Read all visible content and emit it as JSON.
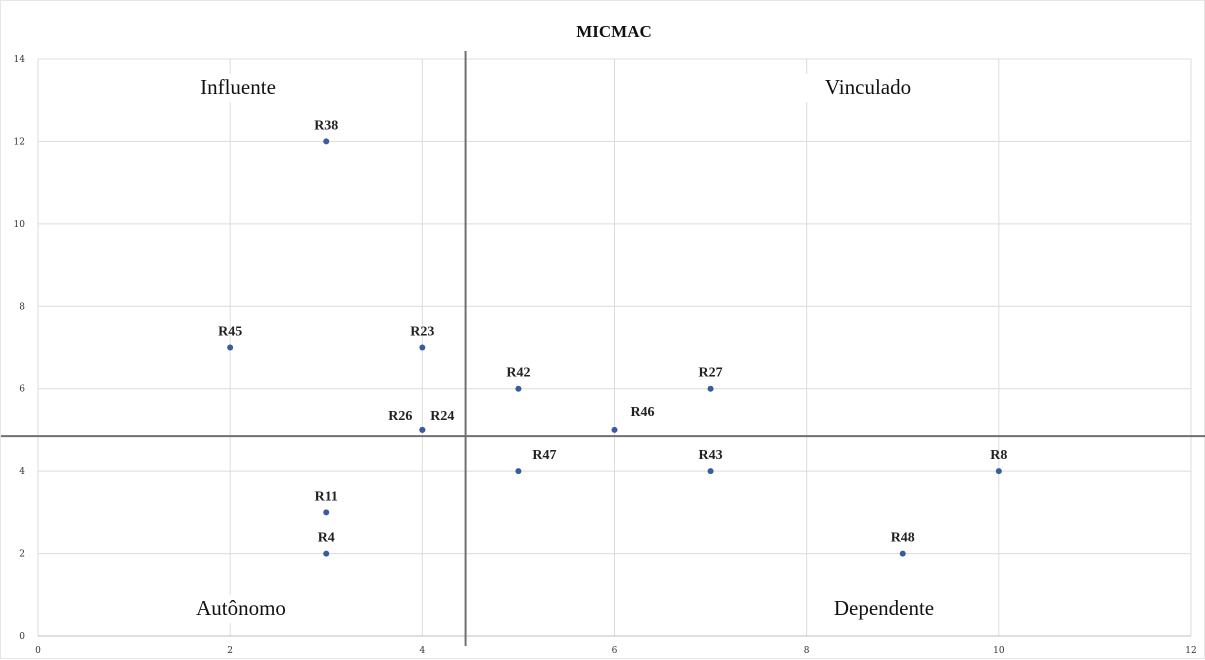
{
  "chart_data": {
    "type": "scatter",
    "title": "MICMAC",
    "xlabel": "",
    "ylabel": "",
    "xlim": [
      0,
      12
    ],
    "ylim": [
      0,
      14
    ],
    "x_ticks": [
      "0",
      "2",
      "4",
      "6",
      "8",
      "10",
      "12"
    ],
    "y_ticks": [
      "0",
      "2",
      "4",
      "6",
      "8",
      "10",
      "12",
      "14"
    ],
    "grid": true,
    "point_color": "#3a5ba0",
    "axis_line_color": "#707070",
    "divider_x": 4.45,
    "divider_y": 4.85,
    "quadrants": {
      "top_left": "Influente",
      "top_right": "Vinculado",
      "bottom_left": "Autônomo",
      "bottom_right": "Dependente"
    },
    "points": [
      {
        "label": "R38",
        "x": 3,
        "y": 12
      },
      {
        "label": "R45",
        "x": 2,
        "y": 7
      },
      {
        "label": "R23",
        "x": 4,
        "y": 7
      },
      {
        "label": "R26",
        "x": 4,
        "y": 5
      },
      {
        "label": "R24",
        "x": 4,
        "y": 5
      },
      {
        "label": "R11",
        "x": 3,
        "y": 3
      },
      {
        "label": "R4",
        "x": 3,
        "y": 2
      },
      {
        "label": "R42",
        "x": 5,
        "y": 6
      },
      {
        "label": "R27",
        "x": 7,
        "y": 6
      },
      {
        "label": "R46",
        "x": 6,
        "y": 5
      },
      {
        "label": "R47",
        "x": 5,
        "y": 4
      },
      {
        "label": "R43",
        "x": 7,
        "y": 4
      },
      {
        "label": "R8",
        "x": 10,
        "y": 4
      },
      {
        "label": "R48",
        "x": 9,
        "y": 2
      }
    ]
  }
}
